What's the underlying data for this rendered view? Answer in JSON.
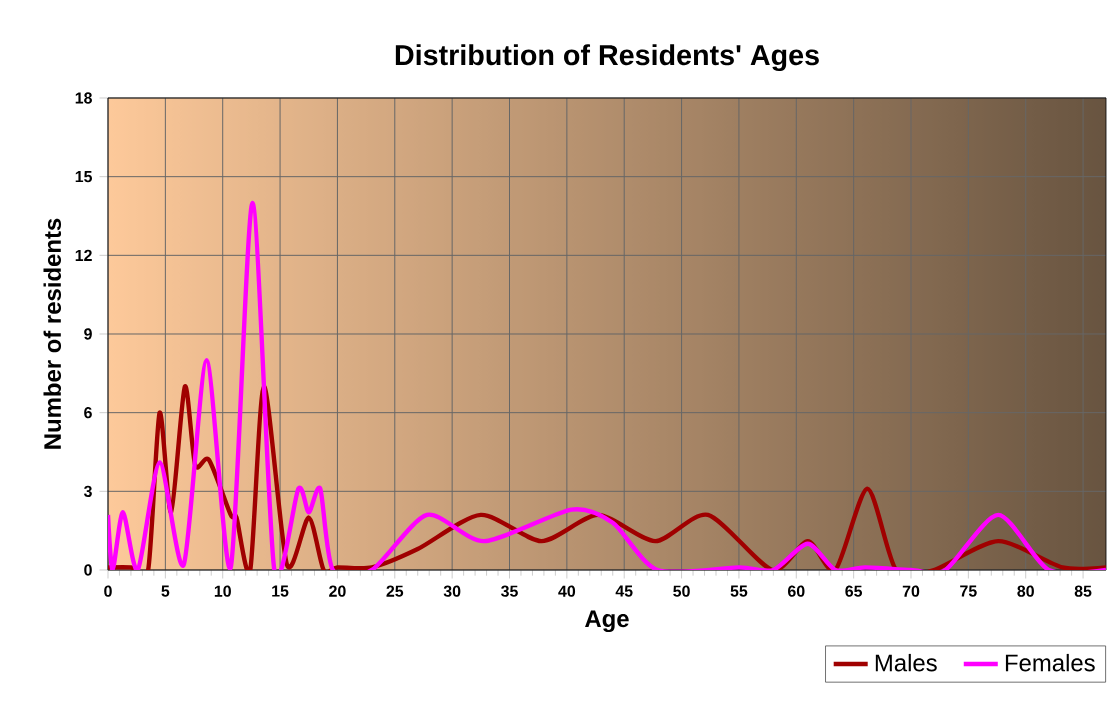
{
  "chart_data": {
    "type": "line",
    "title": "Distribution of Residents' Ages",
    "xlabel": "Age",
    "ylabel": "Number of residents",
    "xlim": [
      0,
      87
    ],
    "xticks": [
      0,
      5,
      10,
      15,
      20,
      25,
      30,
      35,
      40,
      45,
      50,
      55,
      60,
      65,
      70,
      75,
      80,
      85
    ],
    "ylim": [
      0,
      18
    ],
    "yticks": [
      0,
      3,
      6,
      9,
      12,
      15,
      18
    ],
    "grid": true,
    "legend": "bottom right",
    "marker": "none",
    "line_style": "solid",
    "series": [
      {
        "name": "Males",
        "color": "#a00000",
        "x": [
          0,
          2,
          3.5,
          4.5,
          5.5,
          6.7,
          7.6,
          8.8,
          10.7,
          11.2,
          12.4,
          13.6,
          15.6,
          17.5,
          18.8,
          20,
          23,
          27,
          32.5,
          37.8,
          42.7,
          47.7,
          52.3,
          57.9,
          61,
          63.4,
          66.2,
          68.7,
          72,
          77.6,
          83.2,
          87
        ],
        "values": [
          0.1,
          0.1,
          0,
          6,
          2.2,
          7,
          4,
          4.2,
          2.1,
          2,
          0,
          7,
          0.2,
          2,
          0,
          0.1,
          0.1,
          0.8,
          2.1,
          1.1,
          2.1,
          1.1,
          2.1,
          0,
          1.1,
          0,
          3.1,
          0,
          0,
          1.1,
          0.1,
          0.1
        ]
      },
      {
        "name": "Females",
        "color": "#ff00ff",
        "x": [
          0,
          0.4,
          1.3,
          2.6,
          4.5,
          6.6,
          8.6,
          10.7,
          12.6,
          14.5,
          16.6,
          17.5,
          18.5,
          19.6,
          23,
          27.8,
          32.8,
          40.4,
          44,
          47.9,
          55,
          58,
          61,
          63.4,
          66,
          70,
          73,
          77.6,
          82,
          87
        ],
        "values": [
          2.1,
          0,
          2.2,
          0,
          4.1,
          0.2,
          8,
          0.1,
          14,
          0,
          3.1,
          2.2,
          3.1,
          0,
          0,
          2.1,
          1.1,
          2.3,
          1.8,
          0,
          0.1,
          0,
          1,
          0,
          0.1,
          0,
          0,
          2.1,
          0,
          0
        ]
      }
    ]
  }
}
